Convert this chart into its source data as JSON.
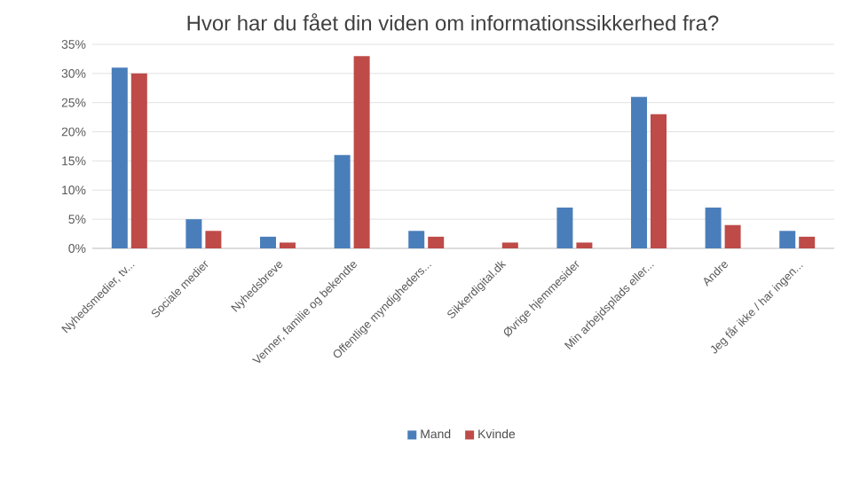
{
  "chart_data": {
    "type": "bar",
    "title": "Hvor har du fået din viden om informationssikkerhed fra?",
    "categories": [
      "Nyhedsmedier, tv...",
      "Sociale medier",
      "Nyhedsbreve",
      "Venner, familie og bekendte",
      "Offentlige myndigheders...",
      "Sikkerdigital.dk",
      "Øvrige hjemmesider",
      "Min arbejdsplads eller...",
      "Andre",
      "Jeg får ikke / har ingen..."
    ],
    "series": [
      {
        "name": "Mand",
        "color": "#4a7ebb",
        "values": [
          31,
          5,
          2,
          16,
          3,
          0,
          7,
          26,
          7,
          3
        ]
      },
      {
        "name": "Kvinde",
        "color": "#be4b48",
        "values": [
          30,
          3,
          1,
          33,
          2,
          1,
          1,
          23,
          4,
          2
        ]
      }
    ],
    "ylim": [
      0,
      35
    ],
    "yticks": [
      {
        "value": 0,
        "label": "0%"
      },
      {
        "value": 5,
        "label": "5%"
      },
      {
        "value": 10,
        "label": "10%"
      },
      {
        "value": 15,
        "label": "15%"
      },
      {
        "value": 20,
        "label": "20%"
      },
      {
        "value": 25,
        "label": "25%"
      },
      {
        "value": 30,
        "label": "30%"
      },
      {
        "value": 35,
        "label": "35%"
      }
    ],
    "grid": "y",
    "legend": "bottom"
  }
}
